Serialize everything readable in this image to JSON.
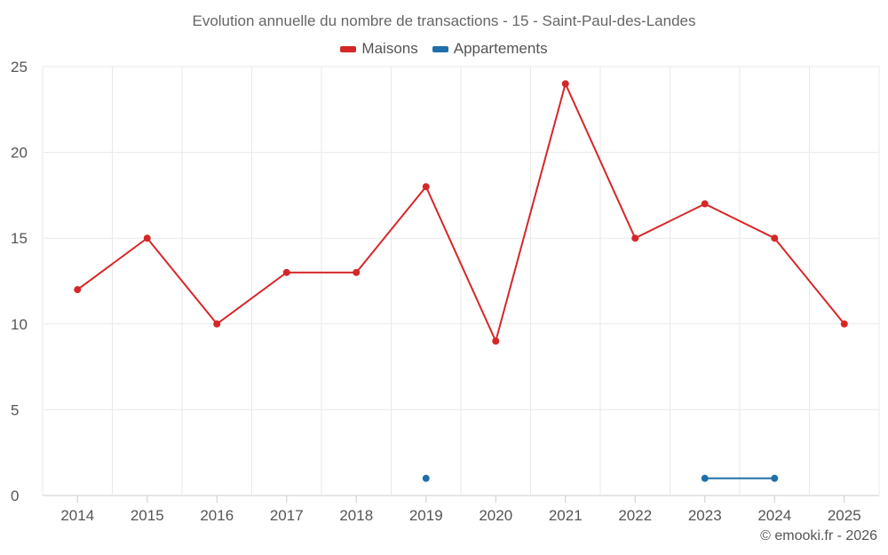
{
  "colors": {
    "maisons": "#d62728",
    "appartements": "#1f6fa8",
    "grid": "#e9e9e9",
    "axis": "#cccccc"
  },
  "credit": "© emooki.fr - 2026",
  "chart_data": {
    "type": "line",
    "title": "Evolution annuelle du nombre de transactions - 15 - Saint-Paul-des-Landes",
    "categories": [
      "2014",
      "2015",
      "2016",
      "2017",
      "2018",
      "2019",
      "2020",
      "2021",
      "2022",
      "2023",
      "2024",
      "2025"
    ],
    "series": [
      {
        "name": "Maisons",
        "color": "#d62728",
        "values": [
          12,
          15,
          10,
          13,
          13,
          18,
          9,
          24,
          15,
          17,
          15,
          10
        ]
      },
      {
        "name": "Appartements",
        "color": "#1f6fa8",
        "values": [
          null,
          null,
          null,
          null,
          null,
          1,
          null,
          null,
          null,
          1,
          1,
          null
        ]
      }
    ],
    "ylim": [
      0,
      25
    ],
    "yticks": [
      0,
      5,
      10,
      15,
      20,
      25
    ],
    "legend": "top-center",
    "grid": true
  }
}
